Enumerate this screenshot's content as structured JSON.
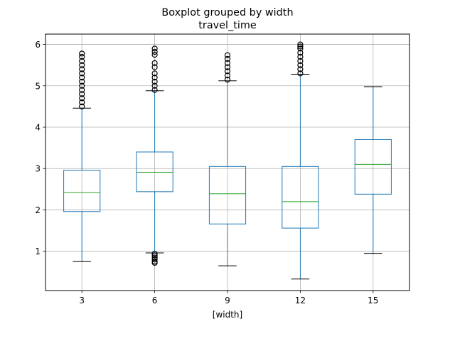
{
  "chart_data": {
    "type": "boxplot",
    "title": "Boxplot grouped by width",
    "subtitle": "travel_time",
    "xlabel": "[width]",
    "ylabel": "",
    "ylim": [
      0.05,
      6.25
    ],
    "yticks": [
      1,
      2,
      3,
      4,
      5,
      6
    ],
    "grid": true,
    "categories": [
      "3",
      "6",
      "9",
      "12",
      "15"
    ],
    "boxes": [
      {
        "category": "3",
        "whisker_low": 0.75,
        "q1": 1.96,
        "median": 2.42,
        "q3": 2.96,
        "whisker_high": 4.46,
        "outliers_low": [],
        "outliers_high": [
          4.5,
          4.6,
          4.7,
          4.8,
          4.9,
          5.0,
          5.1,
          5.2,
          5.3,
          5.4,
          5.5,
          5.6,
          5.7,
          5.78
        ]
      },
      {
        "category": "6",
        "whisker_low": 0.96,
        "q1": 2.44,
        "median": 2.91,
        "q3": 3.4,
        "whisker_high": 4.88,
        "outliers_low": [
          0.72,
          0.75,
          0.8,
          0.85,
          0.9,
          0.94
        ],
        "outliers_high": [
          4.9,
          5.0,
          5.1,
          5.2,
          5.3,
          5.45,
          5.55,
          5.75,
          5.82,
          5.9
        ]
      },
      {
        "category": "9",
        "whisker_low": 0.65,
        "q1": 1.66,
        "median": 2.39,
        "q3": 3.05,
        "whisker_high": 5.12,
        "outliers_low": [],
        "outliers_high": [
          5.15,
          5.25,
          5.35,
          5.45,
          5.55,
          5.65,
          5.74
        ]
      },
      {
        "category": "12",
        "whisker_low": 0.33,
        "q1": 1.56,
        "median": 2.2,
        "q3": 3.05,
        "whisker_high": 5.28,
        "outliers_low": [],
        "outliers_high": [
          5.3,
          5.4,
          5.5,
          5.6,
          5.7,
          5.8,
          5.9,
          5.95,
          6.0
        ]
      },
      {
        "category": "15",
        "whisker_low": 0.95,
        "q1": 2.38,
        "median": 3.1,
        "q3": 3.7,
        "whisker_high": 4.98,
        "outliers_low": [],
        "outliers_high": []
      }
    ],
    "colors": {
      "box": "#1f77b4",
      "median": "#2ca02c",
      "whisker_cap": "#000000",
      "grid": "#b0b0b0",
      "outlier": "#000000"
    }
  }
}
